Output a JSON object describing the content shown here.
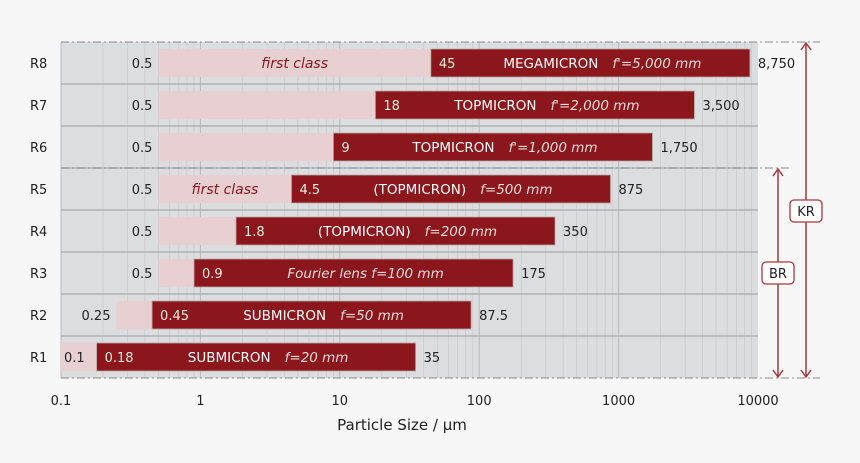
{
  "chart_data": {
    "type": "bar",
    "subtype": "floating-range-log",
    "xlabel": "Particle Size / µm",
    "xscale": "log",
    "xlim": [
      0.1,
      10000
    ],
    "xticks": [
      "0.1",
      "1",
      "10",
      "100",
      "1000",
      "10000"
    ],
    "grid": true,
    "colors": {
      "fine_range": "#e8d0d2",
      "main_range": "#8b161c",
      "plot_bg": "#dcdddf",
      "arrow": "#a33a40"
    },
    "rows": [
      {
        "name": "R1",
        "min": 0.1,
        "min_label": "0.1",
        "split": 0.18,
        "split_label": "0.18",
        "max": 35,
        "max_label": "35",
        "lens": "SUBMICRON",
        "focal": "f=20 mm",
        "fine_note": ""
      },
      {
        "name": "R2",
        "min": 0.25,
        "min_label": "0.25",
        "split": 0.45,
        "split_label": "0.45",
        "max": 87.5,
        "max_label": "87.5",
        "lens": "SUBMICRON",
        "focal": "f=50 mm",
        "fine_note": ""
      },
      {
        "name": "R3",
        "min": 0.5,
        "min_label": "0.5",
        "split": 0.9,
        "split_label": "0.9",
        "max": 175,
        "max_label": "175",
        "lens": "",
        "focal": "Fourier lens   f=100 mm",
        "fine_note": ""
      },
      {
        "name": "R4",
        "min": 0.5,
        "min_label": "0.5",
        "split": 1.8,
        "split_label": "1.8",
        "max": 350,
        "max_label": "350",
        "lens": "(TOPMICRON)",
        "focal": "f=200 mm",
        "fine_note": ""
      },
      {
        "name": "R5",
        "min": 0.5,
        "min_label": "0.5",
        "split": 4.5,
        "split_label": "4.5",
        "max": 875,
        "max_label": "875",
        "lens": "(TOPMICRON)",
        "focal": "f=500 mm",
        "fine_note": "first class"
      },
      {
        "name": "R6",
        "min": 0.5,
        "min_label": "0.5",
        "split": 9,
        "split_label": "9",
        "max": 1750,
        "max_label": "1,750",
        "lens": "TOPMICRON",
        "focal": "f'=1,000 mm",
        "fine_note": ""
      },
      {
        "name": "R7",
        "min": 0.5,
        "min_label": "0.5",
        "split": 18,
        "split_label": "18",
        "max": 3500,
        "max_label": "3,500",
        "lens": "TOPMICRON",
        "focal": "f'=2,000 mm",
        "fine_note": ""
      },
      {
        "name": "R8",
        "min": 0.5,
        "min_label": "0.5",
        "split": 45,
        "split_label": "45",
        "max": 8750,
        "max_label": "8,750",
        "lens": "MEGAMICRON",
        "focal": "f'=5,000 mm",
        "fine_note": "first class"
      }
    ],
    "ranges": [
      {
        "label": "BR",
        "from": "R1",
        "to": "R5"
      },
      {
        "label": "KR",
        "from": "R1",
        "to": "R8"
      }
    ]
  }
}
